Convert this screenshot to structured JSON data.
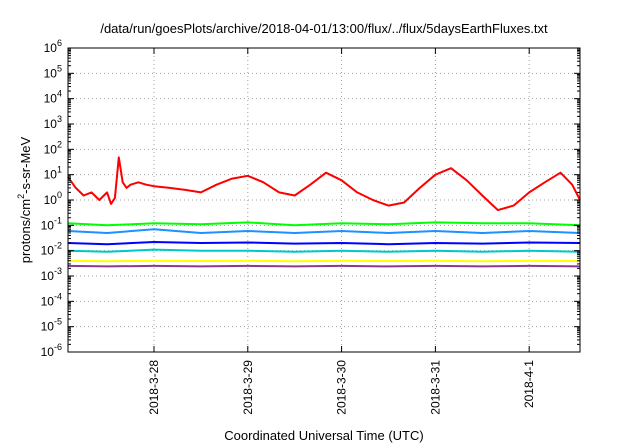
{
  "chart_data": {
    "type": "line",
    "title": "/data/run/goesPlots/archive/2018-04-01/13:00/flux/../flux/5daysEarthFluxes.txt",
    "xlabel": "Coordinated Universal Time (UTC)",
    "ylabel": {
      "base": "protons/cm",
      "exp": "2",
      "rest": "-s-sr-MeV"
    },
    "yscale": "log",
    "ylim": [
      1e-06,
      1000000.0
    ],
    "ytick_labels": [
      {
        "base": "10",
        "exp": "-6"
      },
      {
        "base": "10",
        "exp": "-5"
      },
      {
        "base": "10",
        "exp": "-4"
      },
      {
        "base": "10",
        "exp": "-3"
      },
      {
        "base": "10",
        "exp": "-2"
      },
      {
        "base": "10",
        "exp": "-1"
      },
      {
        "base": "10",
        "exp": "0"
      },
      {
        "base": "10",
        "exp": "1"
      },
      {
        "base": "10",
        "exp": "2"
      },
      {
        "base": "10",
        "exp": "3"
      },
      {
        "base": "10",
        "exp": "4"
      },
      {
        "base": "10",
        "exp": "5"
      },
      {
        "base": "10",
        "exp": "6"
      }
    ],
    "xlim": [
      "2018-03-27T02:00",
      "2018-04-01T13:00"
    ],
    "xticks": [
      {
        "label": "2018-3-28",
        "value": "2018-03-28T00:00"
      },
      {
        "label": "2018-3-29",
        "value": "2018-03-29T00:00"
      },
      {
        "label": "2018-3-30",
        "value": "2018-03-30T00:00"
      },
      {
        "label": "2018-3-31",
        "value": "2018-03-31T00:00"
      },
      {
        "label": "2018-4-1",
        "value": "2018-04-01T00:00"
      }
    ],
    "grid": true,
    "series": [
      {
        "color": "#ff0000",
        "x": [
          "2018-03-27T02:00",
          "2018-03-27T04:00",
          "2018-03-27T06:00",
          "2018-03-27T08:00",
          "2018-03-27T10:00",
          "2018-03-27T12:00",
          "2018-03-27T13:00",
          "2018-03-27T14:00",
          "2018-03-27T15:00",
          "2018-03-27T16:00",
          "2018-03-27T17:00",
          "2018-03-27T18:00",
          "2018-03-27T20:00",
          "2018-03-27T22:00",
          "2018-03-28T00:00",
          "2018-03-28T04:00",
          "2018-03-28T08:00",
          "2018-03-28T12:00",
          "2018-03-28T16:00",
          "2018-03-28T20:00",
          "2018-03-29T00:00",
          "2018-03-29T04:00",
          "2018-03-29T08:00",
          "2018-03-29T12:00",
          "2018-03-29T16:00",
          "2018-03-29T20:00",
          "2018-03-30T00:00",
          "2018-03-30T04:00",
          "2018-03-30T08:00",
          "2018-03-30T12:00",
          "2018-03-30T16:00",
          "2018-03-30T20:00",
          "2018-03-31T00:00",
          "2018-03-31T04:00",
          "2018-03-31T08:00",
          "2018-03-31T12:00",
          "2018-03-31T16:00",
          "2018-03-31T20:00",
          "2018-04-01T00:00",
          "2018-04-01T04:00",
          "2018-04-01T08:00",
          "2018-04-01T11:00",
          "2018-04-01T13:00"
        ],
        "y": [
          8,
          3,
          1.5,
          2,
          1,
          2,
          0.7,
          1.2,
          48,
          5,
          3,
          4,
          5,
          4,
          3.5,
          3,
          2.5,
          2,
          4,
          7,
          9,
          5,
          2,
          1.5,
          4,
          12,
          6,
          2,
          1,
          0.6,
          0.8,
          3,
          10,
          18,
          6,
          1.5,
          0.4,
          0.6,
          2,
          5,
          12,
          4,
          1
        ]
      },
      {
        "color": "#00ff00",
        "x": [
          "2018-03-27T02:00",
          "2018-03-27T12:00",
          "2018-03-28T00:00",
          "2018-03-28T12:00",
          "2018-03-29T00:00",
          "2018-03-29T12:00",
          "2018-03-30T00:00",
          "2018-03-30T12:00",
          "2018-03-31T00:00",
          "2018-03-31T12:00",
          "2018-04-01T00:00",
          "2018-04-01T13:00"
        ],
        "y": [
          0.12,
          0.1,
          0.12,
          0.11,
          0.13,
          0.1,
          0.12,
          0.11,
          0.13,
          0.12,
          0.12,
          0.1
        ]
      },
      {
        "color": "#1e90ff",
        "x": [
          "2018-03-27T02:00",
          "2018-03-27T12:00",
          "2018-03-28T00:00",
          "2018-03-28T12:00",
          "2018-03-29T00:00",
          "2018-03-29T12:00",
          "2018-03-30T00:00",
          "2018-03-30T12:00",
          "2018-03-31T00:00",
          "2018-03-31T12:00",
          "2018-04-01T00:00",
          "2018-04-01T13:00"
        ],
        "y": [
          0.06,
          0.05,
          0.07,
          0.05,
          0.06,
          0.05,
          0.06,
          0.05,
          0.06,
          0.05,
          0.06,
          0.05
        ]
      },
      {
        "color": "#0000ff",
        "x": [
          "2018-03-27T02:00",
          "2018-03-27T12:00",
          "2018-03-28T00:00",
          "2018-03-28T12:00",
          "2018-03-29T00:00",
          "2018-03-29T12:00",
          "2018-03-30T00:00",
          "2018-03-30T12:00",
          "2018-03-31T00:00",
          "2018-03-31T12:00",
          "2018-04-01T00:00",
          "2018-04-01T13:00"
        ],
        "y": [
          0.02,
          0.018,
          0.022,
          0.02,
          0.021,
          0.019,
          0.02,
          0.018,
          0.02,
          0.019,
          0.021,
          0.02
        ]
      },
      {
        "color": "#00c8c8",
        "x": [
          "2018-03-27T02:00",
          "2018-03-27T12:00",
          "2018-03-28T00:00",
          "2018-03-28T12:00",
          "2018-03-29T00:00",
          "2018-03-29T12:00",
          "2018-03-30T00:00",
          "2018-03-30T12:00",
          "2018-03-31T00:00",
          "2018-03-31T12:00",
          "2018-04-01T00:00",
          "2018-04-01T13:00"
        ],
        "y": [
          0.01,
          0.009,
          0.011,
          0.01,
          0.01,
          0.009,
          0.01,
          0.009,
          0.01,
          0.009,
          0.01,
          0.009
        ]
      },
      {
        "color": "#ffff00",
        "x": [
          "2018-03-27T02:00",
          "2018-03-27T12:00",
          "2018-03-28T00:00",
          "2018-03-28T12:00",
          "2018-03-29T00:00",
          "2018-03-29T12:00",
          "2018-03-30T00:00",
          "2018-03-30T12:00",
          "2018-03-31T00:00",
          "2018-03-31T12:00",
          "2018-04-01T00:00",
          "2018-04-01T13:00"
        ],
        "y": [
          0.004,
          0.0038,
          0.004,
          0.0039,
          0.004,
          0.0038,
          0.004,
          0.0039,
          0.004,
          0.0038,
          0.004,
          0.0039
        ]
      },
      {
        "color": "#8b3a8b",
        "x": [
          "2018-03-27T02:00",
          "2018-03-27T12:00",
          "2018-03-28T00:00",
          "2018-03-28T12:00",
          "2018-03-29T00:00",
          "2018-03-29T12:00",
          "2018-03-30T00:00",
          "2018-03-30T12:00",
          "2018-03-31T00:00",
          "2018-03-31T12:00",
          "2018-04-01T00:00",
          "2018-04-01T13:00"
        ],
        "y": [
          0.0025,
          0.0024,
          0.0025,
          0.0024,
          0.0025,
          0.0024,
          0.0025,
          0.0024,
          0.0025,
          0.0024,
          0.0025,
          0.0024
        ]
      }
    ]
  }
}
